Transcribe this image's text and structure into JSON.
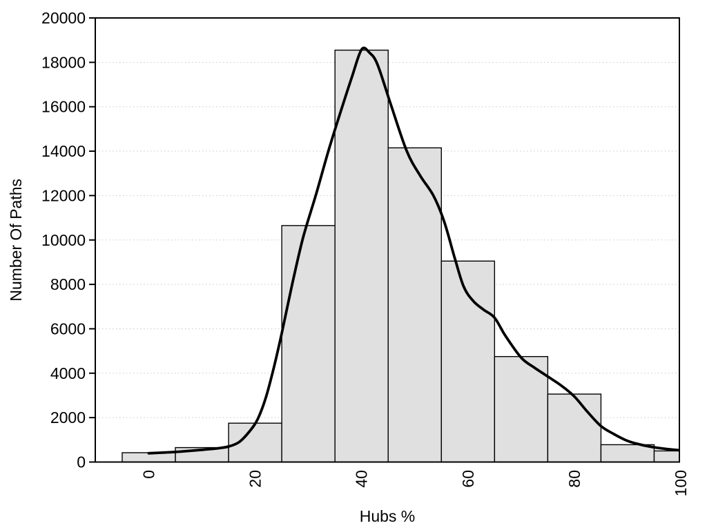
{
  "chart_data": {
    "type": "bar",
    "subtype": "histogram-with-density-curve",
    "title": "",
    "xlabel": "Hubs %",
    "ylabel": "Number Of Paths",
    "xlim": [
      -10,
      100
    ],
    "ylim": [
      0,
      20000
    ],
    "grid": {
      "horizontal": true,
      "vertical": false,
      "style": "dotted"
    },
    "legend": "none",
    "bin_width": 10,
    "x_ticks": [
      0,
      20,
      40,
      60,
      80,
      100
    ],
    "x_tick_labels": [
      "0",
      "20",
      "40",
      "60",
      "80",
      "100"
    ],
    "y_ticks": [
      0,
      2000,
      4000,
      6000,
      8000,
      10000,
      12000,
      14000,
      16000,
      18000,
      20000
    ],
    "y_tick_labels": [
      "0",
      "2000",
      "4000",
      "6000",
      "8000",
      "10000",
      "12000",
      "14000",
      "16000",
      "18000",
      "20000"
    ],
    "bar_centers": [
      0,
      10,
      20,
      30,
      40,
      50,
      60,
      70,
      80,
      90,
      100
    ],
    "bar_values": [
      420,
      650,
      1750,
      10650,
      18550,
      14150,
      9050,
      4750,
      3060,
      780,
      500
    ],
    "density_series": {
      "name": "density-curve",
      "points": [
        [
          0,
          395
        ],
        [
          3,
          430
        ],
        [
          6,
          470
        ],
        [
          10,
          550
        ],
        [
          13,
          620
        ],
        [
          15,
          700
        ],
        [
          17,
          900
        ],
        [
          19,
          1400
        ],
        [
          20.5,
          1950
        ],
        [
          22,
          2900
        ],
        [
          23.5,
          4250
        ],
        [
          25,
          5800
        ],
        [
          27,
          8050
        ],
        [
          29,
          10100
        ],
        [
          31.5,
          12100
        ],
        [
          34,
          14200
        ],
        [
          36.5,
          16100
        ],
        [
          38.2,
          17350
        ],
        [
          40,
          18580
        ],
        [
          41.5,
          18430
        ],
        [
          43,
          17900
        ],
        [
          45.5,
          16100
        ],
        [
          48.5,
          14000
        ],
        [
          51,
          12900
        ],
        [
          53.5,
          12000
        ],
        [
          55.5,
          10850
        ],
        [
          57.5,
          9200
        ],
        [
          59.2,
          7900
        ],
        [
          61,
          7250
        ],
        [
          63,
          6850
        ],
        [
          65,
          6500
        ],
        [
          67,
          5700
        ],
        [
          70,
          4700
        ],
        [
          72.5,
          4250
        ],
        [
          75,
          3850
        ],
        [
          77.5,
          3450
        ],
        [
          80,
          2950
        ],
        [
          82.5,
          2250
        ],
        [
          85,
          1620
        ],
        [
          87.5,
          1250
        ],
        [
          90,
          950
        ],
        [
          92.5,
          780
        ],
        [
          95,
          660
        ],
        [
          97.5,
          580
        ],
        [
          100,
          525
        ]
      ]
    },
    "colors": {
      "background": "#ffffff",
      "bar_fill": "#e0e0e0",
      "bar_stroke": "#000000",
      "curve": "#000000",
      "grid": "#c8c8c8",
      "axis": "#000000",
      "text": "#000000"
    }
  }
}
